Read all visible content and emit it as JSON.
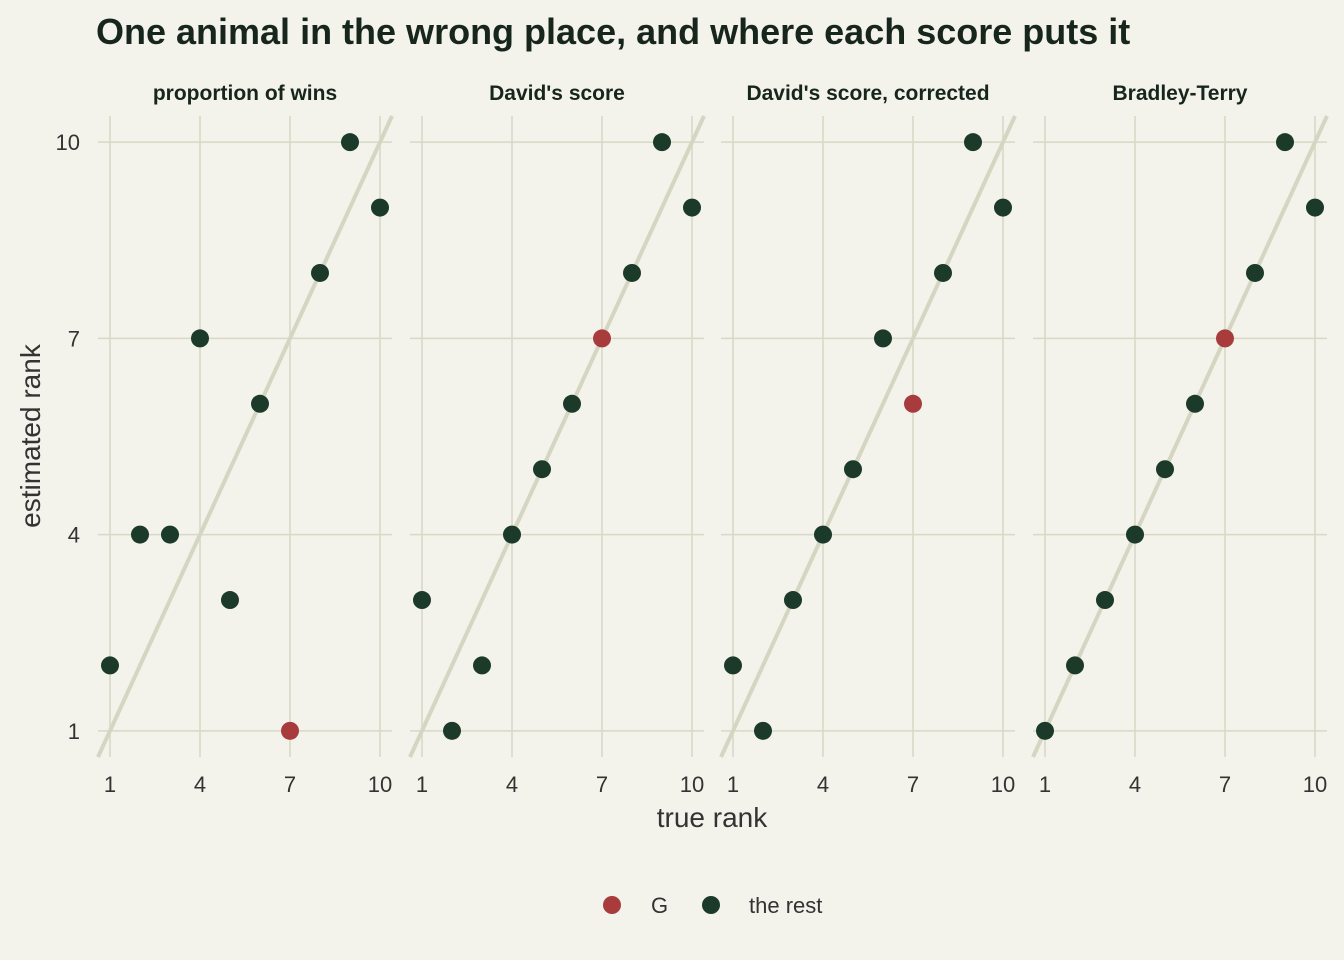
{
  "chart_data": {
    "type": "scatter",
    "title": "One animal in the wrong place, and where each score puts it",
    "xlabel": "true rank",
    "ylabel": "estimated rank",
    "xlim": [
      0.6,
      10.4
    ],
    "ylim": [
      0.6,
      10.4
    ],
    "x_ticks": [
      1,
      4,
      7,
      10
    ],
    "y_ticks": [
      1,
      4,
      7,
      10
    ],
    "grid": true,
    "reference_line": "y = x",
    "legend_position": "bottom",
    "colors": {
      "background": "#f3f2eb",
      "grid": "#d8d8c6",
      "reference_line": "#d5d6c2",
      "G": "#a83c3c",
      "rest": "#1c3a2a"
    },
    "legend": [
      {
        "key": "G",
        "label": "G"
      },
      {
        "key": "rest",
        "label": "the rest"
      }
    ],
    "panels": [
      {
        "title": "proportion of wins",
        "points": [
          {
            "x": 1,
            "y": 2,
            "group": "rest"
          },
          {
            "x": 2,
            "y": 4,
            "group": "rest"
          },
          {
            "x": 3,
            "y": 4,
            "group": "rest"
          },
          {
            "x": 4,
            "y": 7,
            "group": "rest"
          },
          {
            "x": 5,
            "y": 3,
            "group": "rest"
          },
          {
            "x": 6,
            "y": 6,
            "group": "rest"
          },
          {
            "x": 7,
            "y": 1,
            "group": "G"
          },
          {
            "x": 8,
            "y": 8,
            "group": "rest"
          },
          {
            "x": 9,
            "y": 10,
            "group": "rest"
          },
          {
            "x": 10,
            "y": 9,
            "group": "rest"
          }
        ]
      },
      {
        "title": "David's score",
        "points": [
          {
            "x": 1,
            "y": 3,
            "group": "rest"
          },
          {
            "x": 2,
            "y": 1,
            "group": "rest"
          },
          {
            "x": 3,
            "y": 2,
            "group": "rest"
          },
          {
            "x": 4,
            "y": 4,
            "group": "rest"
          },
          {
            "x": 5,
            "y": 5,
            "group": "rest"
          },
          {
            "x": 6,
            "y": 6,
            "group": "rest"
          },
          {
            "x": 7,
            "y": 7,
            "group": "G"
          },
          {
            "x": 8,
            "y": 8,
            "group": "rest"
          },
          {
            "x": 9,
            "y": 10,
            "group": "rest"
          },
          {
            "x": 10,
            "y": 9,
            "group": "rest"
          }
        ]
      },
      {
        "title": "David's score, corrected",
        "points": [
          {
            "x": 1,
            "y": 2,
            "group": "rest"
          },
          {
            "x": 2,
            "y": 1,
            "group": "rest"
          },
          {
            "x": 3,
            "y": 3,
            "group": "rest"
          },
          {
            "x": 4,
            "y": 4,
            "group": "rest"
          },
          {
            "x": 5,
            "y": 5,
            "group": "rest"
          },
          {
            "x": 6,
            "y": 7,
            "group": "rest"
          },
          {
            "x": 7,
            "y": 6,
            "group": "G"
          },
          {
            "x": 8,
            "y": 8,
            "group": "rest"
          },
          {
            "x": 9,
            "y": 10,
            "group": "rest"
          },
          {
            "x": 10,
            "y": 9,
            "group": "rest"
          }
        ]
      },
      {
        "title": "Bradley-Terry",
        "points": [
          {
            "x": 1,
            "y": 1,
            "group": "rest"
          },
          {
            "x": 2,
            "y": 2,
            "group": "rest"
          },
          {
            "x": 3,
            "y": 3,
            "group": "rest"
          },
          {
            "x": 4,
            "y": 4,
            "group": "rest"
          },
          {
            "x": 5,
            "y": 5,
            "group": "rest"
          },
          {
            "x": 6,
            "y": 6,
            "group": "rest"
          },
          {
            "x": 7,
            "y": 7,
            "group": "G"
          },
          {
            "x": 8,
            "y": 8,
            "group": "rest"
          },
          {
            "x": 9,
            "y": 10,
            "group": "rest"
          },
          {
            "x": 10,
            "y": 9,
            "group": "rest"
          }
        ]
      }
    ]
  }
}
